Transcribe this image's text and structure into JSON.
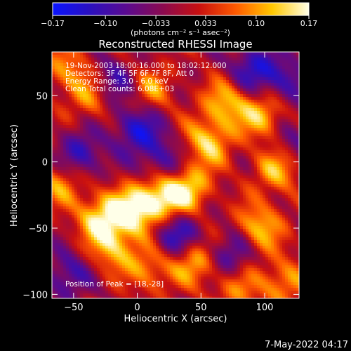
{
  "chart_data": {
    "type": "heatmap",
    "title": "Reconstructed RHESSI Image",
    "xlabel": "Heliocentric X (arcsec)",
    "ylabel": "Heliocentric Y (arcsec)",
    "xlim": [
      -67,
      127
    ],
    "ylim": [
      -103,
      83
    ],
    "x_ticks": [
      -50,
      0,
      50,
      100
    ],
    "y_ticks": [
      -100,
      -50,
      0,
      50
    ],
    "x_tick_labels": [
      "−50",
      "0",
      "50",
      "100"
    ],
    "y_tick_labels": [
      "−100",
      "−50",
      "0",
      "50"
    ],
    "colorbar": {
      "range": [
        -0.17,
        0.17
      ],
      "ticks": [
        -0.17,
        -0.1,
        -0.033,
        0.033,
        0.1,
        0.17
      ],
      "tick_labels": [
        "−0.17",
        "−0.10",
        "−0.033",
        "0.033",
        "0.10",
        "0.17"
      ],
      "unit_label": "(photons cm⁻² s⁻¹ asec⁻²)",
      "colors": [
        "#0a14ff",
        "#2a10c0",
        "#5a0a90",
        "#8a0a50",
        "#c81010",
        "#ff5a00",
        "#ffc800",
        "#ffffe8"
      ]
    },
    "annotations": [
      "19-Nov-2003 18:00:16.000 to 18:02:12.000",
      "Detectors: 3F 4F 5F 6F 7F 8F, Att 0",
      "Energy Range: 3.0 - 6.0 keV",
      "Clean    Total counts: 6.08E+03",
      "Position of Peak = [18,-28]"
    ],
    "peak": [
      18,
      -28
    ],
    "grid": false,
    "blobs": [
      {
        "x": 18,
        "y": -28,
        "v": 0.17
      },
      {
        "x": -5,
        "y": -38,
        "v": 0.15
      },
      {
        "x": -30,
        "y": -42,
        "v": 0.13
      },
      {
        "x": 40,
        "y": -20,
        "v": 0.13
      },
      {
        "x": 55,
        "y": 15,
        "v": 0.13
      },
      {
        "x": 70,
        "y": 45,
        "v": 0.12
      },
      {
        "x": 100,
        "y": 35,
        "v": 0.13
      },
      {
        "x": 110,
        "y": -5,
        "v": 0.12
      },
      {
        "x": 95,
        "y": -50,
        "v": 0.13
      },
      {
        "x": -20,
        "y": -65,
        "v": 0.11
      },
      {
        "x": 10,
        "y": -80,
        "v": 0.1
      },
      {
        "x": 45,
        "y": -75,
        "v": 0.12
      },
      {
        "x": -60,
        "y": -15,
        "v": 0.1
      },
      {
        "x": -55,
        "y": 70,
        "v": 0.09
      },
      {
        "x": -35,
        "y": 50,
        "v": 0.1
      },
      {
        "x": 10,
        "y": 55,
        "v": 0.09
      },
      {
        "x": 115,
        "y": -90,
        "v": 0.1
      },
      {
        "x": 80,
        "y": -95,
        "v": 0.09
      },
      {
        "x": -45,
        "y": 5,
        "v": -0.12
      },
      {
        "x": 0,
        "y": 25,
        "v": -0.13
      },
      {
        "x": -20,
        "y": 60,
        "v": -0.11
      },
      {
        "x": 30,
        "y": -55,
        "v": -0.14
      },
      {
        "x": 90,
        "y": 70,
        "v": -0.12
      },
      {
        "x": 115,
        "y": 60,
        "v": -0.1
      },
      {
        "x": 75,
        "y": -70,
        "v": -0.11
      },
      {
        "x": -55,
        "y": -85,
        "v": -0.1
      },
      {
        "x": 20,
        "y": 0,
        "v": -0.1
      },
      {
        "x": 120,
        "y": 15,
        "v": -0.08
      }
    ]
  },
  "footer": {
    "timestamp": "7-May-2022 04:17"
  }
}
